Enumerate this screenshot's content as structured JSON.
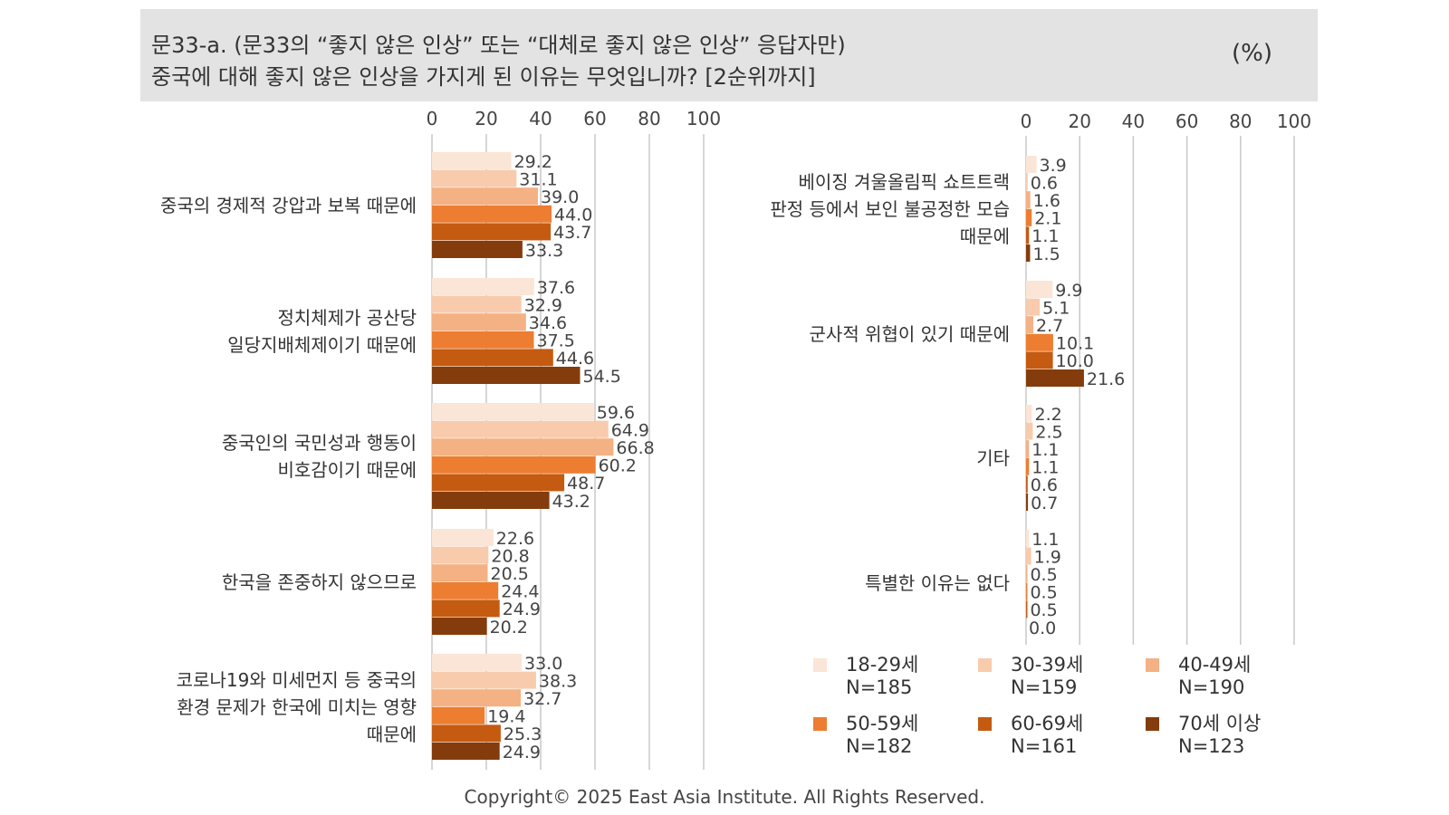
{
  "header": {
    "question_line1": "문33-a. (문33의 “좋지 않은 인상” 또는 “대체로 좋지 않은 인상” 응답자만)",
    "question_line2": "중국에 대해 좋지 않은 인상을 가지게 된 이유는 무엇입니까? [2순위까지]",
    "unit": "(%)"
  },
  "footer": "Copyright© 2025 East Asia Institute. All Rights Reserved.",
  "chart_data": [
    {
      "type": "bar",
      "orientation": "horizontal",
      "xlim": [
        0,
        100
      ],
      "x_ticks": [
        "0",
        "20",
        "40",
        "60",
        "80",
        "100"
      ],
      "categories": [
        [
          "중국의 경제적 강압과 보복 때문에"
        ],
        [
          "정치체제가 공산당",
          "일당지배체제이기 때문에"
        ],
        [
          "중국인의 국민성과 행동이",
          "비호감이기 때문에"
        ],
        [
          "한국을 존중하지 않으므로"
        ],
        [
          "코로나19와 미세먼지 등 중국의",
          "환경 문제가 한국에 미치는 영향",
          "때문에"
        ]
      ],
      "series": [
        {
          "name": "18-29세",
          "values": [
            29.2,
            37.6,
            59.6,
            22.6,
            33.0
          ],
          "labels": [
            "29.2",
            "37.6",
            "59.6",
            "22.6",
            "33.0"
          ]
        },
        {
          "name": "30-39세",
          "values": [
            31.1,
            32.9,
            64.9,
            20.8,
            38.3
          ],
          "labels": [
            "31.1",
            "32.9",
            "64.9",
            "20.8",
            "38.3"
          ]
        },
        {
          "name": "40-49세",
          "values": [
            39.0,
            34.6,
            66.8,
            20.5,
            32.7
          ],
          "labels": [
            "39.0",
            "34.6",
            "66.8",
            "20.5",
            "32.7"
          ]
        },
        {
          "name": "50-59세",
          "values": [
            44.0,
            37.5,
            60.2,
            24.4,
            19.4
          ],
          "labels": [
            "44.0",
            "37.5",
            "60.2",
            "24.4",
            "19.4"
          ]
        },
        {
          "name": "60-69세",
          "values": [
            43.7,
            44.6,
            48.7,
            24.9,
            25.3
          ],
          "labels": [
            "43.7",
            "44.6",
            "48.7",
            "24.9",
            "25.3"
          ]
        },
        {
          "name": "70세 이상",
          "values": [
            33.3,
            54.5,
            43.2,
            20.2,
            24.9
          ],
          "labels": [
            "33.3",
            "54.5",
            "43.2",
            "20.2",
            "24.9"
          ]
        }
      ]
    },
    {
      "type": "bar",
      "orientation": "horizontal",
      "xlim": [
        0,
        100
      ],
      "x_ticks": [
        "0",
        "20",
        "40",
        "60",
        "80",
        "100"
      ],
      "categories": [
        [
          "베이징 겨울올림픽 쇼트트랙",
          "판정 등에서 보인 불공정한 모습",
          "때문에"
        ],
        [
          "군사적 위협이 있기 때문에"
        ],
        [
          "기타"
        ],
        [
          "특별한 이유는 없다"
        ]
      ],
      "series": [
        {
          "name": "18-29세",
          "values": [
            3.9,
            9.9,
            2.2,
            1.1
          ],
          "labels": [
            "3.9",
            "9.9",
            "2.2",
            "1.1"
          ]
        },
        {
          "name": "30-39세",
          "values": [
            0.6,
            5.1,
            2.5,
            1.9
          ],
          "labels": [
            "0.6",
            "5.1",
            "2.5",
            "1.9"
          ]
        },
        {
          "name": "40-49세",
          "values": [
            1.6,
            2.7,
            1.1,
            0.5
          ],
          "labels": [
            "1.6",
            "2.7",
            "1.1",
            "0.5"
          ]
        },
        {
          "name": "50-59세",
          "values": [
            2.1,
            10.1,
            1.1,
            0.5
          ],
          "labels": [
            "2.1",
            "10.1",
            "1.1",
            "0.5"
          ]
        },
        {
          "name": "60-69세",
          "values": [
            1.1,
            10.0,
            0.6,
            0.5
          ],
          "labels": [
            "1.1",
            "10.0",
            "0.6",
            "0.5"
          ]
        },
        {
          "name": "70세 이상",
          "values": [
            1.5,
            21.6,
            0.7,
            0.0
          ],
          "labels": [
            "1.5",
            "21.6",
            "0.7",
            "0.0"
          ]
        }
      ]
    }
  ],
  "legend": [
    {
      "name": "18-29세",
      "n": "N=185",
      "color": "#fbe5d6"
    },
    {
      "name": "30-39세",
      "n": "N=159",
      "color": "#f8cbad"
    },
    {
      "name": "40-49세",
      "n": "N=190",
      "color": "#f4b183"
    },
    {
      "name": "50-59세",
      "n": "N=182",
      "color": "#ed7d31"
    },
    {
      "name": "60-69세",
      "n": "N=161",
      "color": "#c55a11"
    },
    {
      "name": "70세 이상",
      "n": "N=123",
      "color": "#843c0c"
    }
  ],
  "gridline_color": "#c8c8c8",
  "header_bg": "#e3e3e3"
}
